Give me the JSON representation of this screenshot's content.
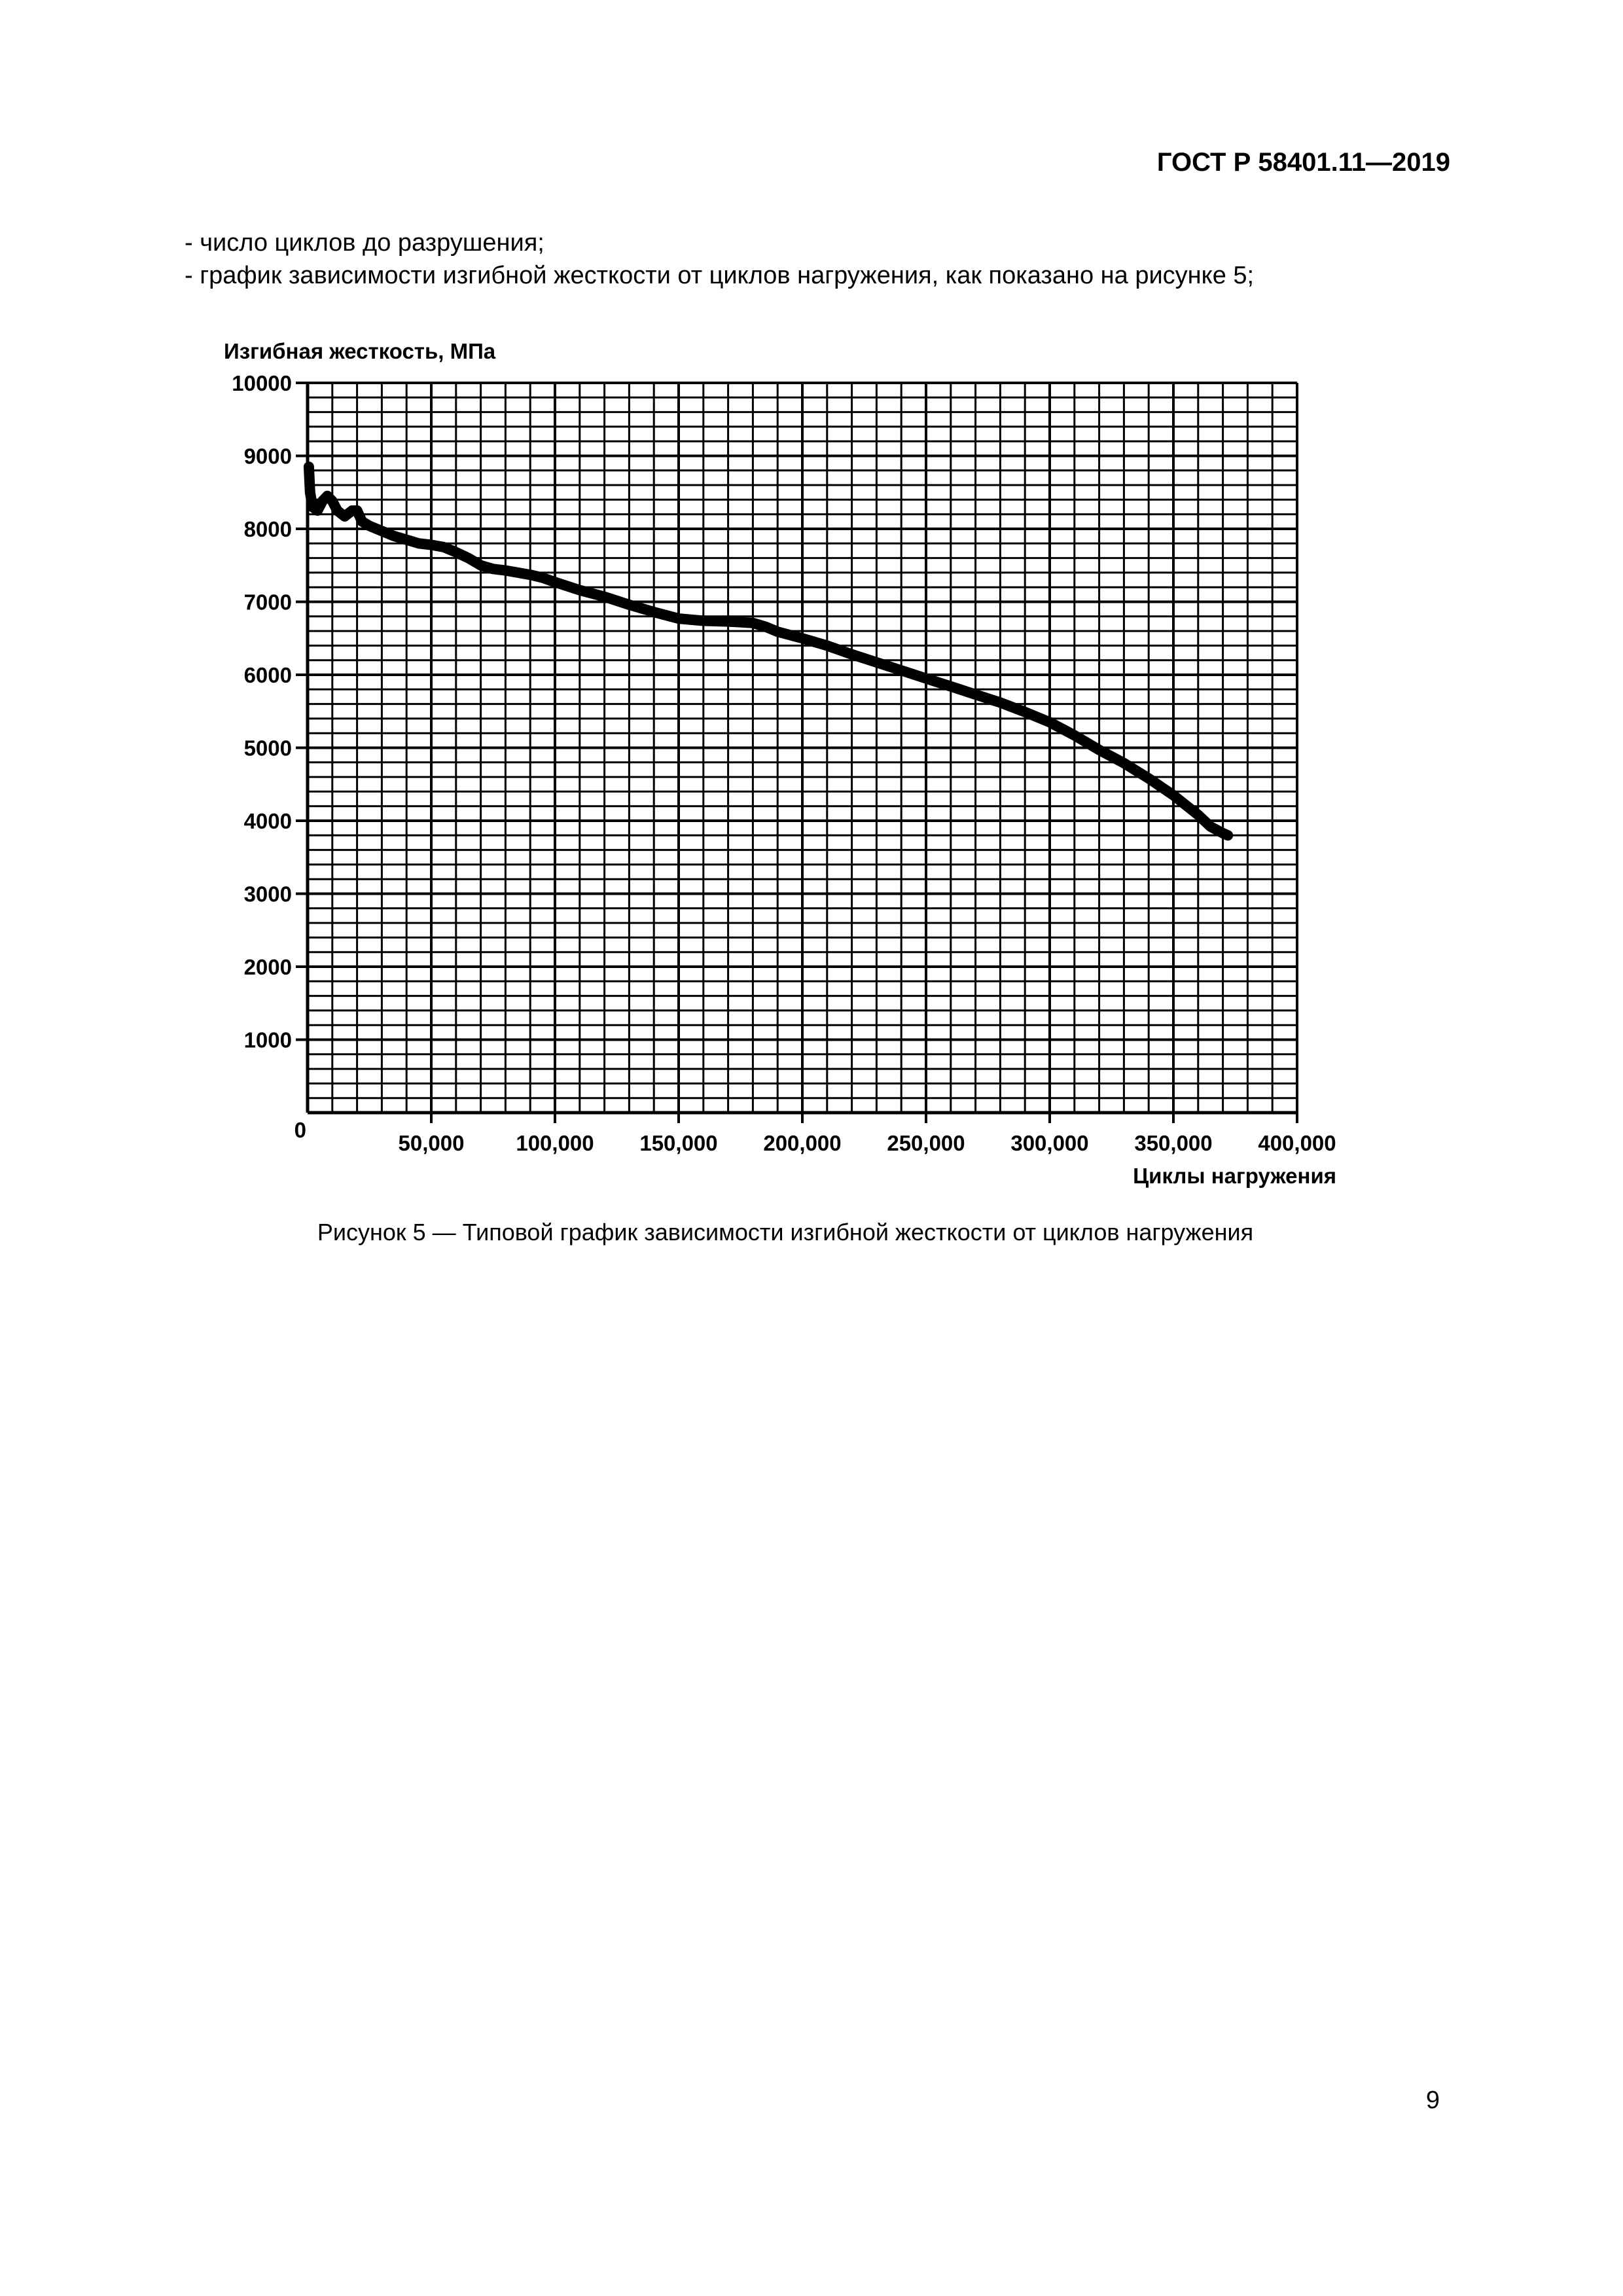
{
  "document": {
    "header": "ГОСТ Р 58401.11—2019",
    "text_lines": [
      "- число циклов до разрушения;",
      "- график зависимости изгибной жесткости от циклов нагружения, как показано на рисунке 5;"
    ],
    "caption": "Рисунок 5 — Типовой график зависимости изгибной жесткости от циклов нагружения",
    "page_number": "9"
  },
  "chart_data": {
    "type": "line",
    "title": "",
    "xlabel": "Циклы нагружения",
    "ylabel": "Изгибная жесткость, МПа",
    "xlim": [
      0,
      400000
    ],
    "ylim": [
      0,
      10000
    ],
    "grid": true,
    "x_ticks": [
      "0",
      "50,000",
      "100,000",
      "150,000",
      "200,000",
      "250,000",
      "300,000",
      "350,000",
      "400,000"
    ],
    "y_ticks": [
      "0",
      "1000",
      "2000",
      "3000",
      "4000",
      "5000",
      "6000",
      "7000",
      "8000",
      "9000",
      "10000"
    ],
    "line_color": "#000000",
    "series": [
      {
        "x": [
          500,
          1000,
          2000,
          4000,
          6000,
          8000,
          10000,
          12000,
          15000,
          18000,
          20000,
          22000,
          25000,
          30000,
          35000,
          40000,
          45000,
          50000,
          55000,
          60000,
          65000,
          70000,
          75000,
          80000,
          85000,
          90000,
          95000,
          100000,
          110000,
          120000,
          130000,
          140000,
          150000,
          160000,
          170000,
          175000,
          180000,
          185000,
          190000,
          200000,
          210000,
          220000,
          230000,
          240000,
          250000,
          260000,
          270000,
          280000,
          290000,
          300000,
          310000,
          320000,
          330000,
          340000,
          350000,
          360000,
          365000,
          370000,
          372000
        ],
        "y": [
          8850,
          8500,
          8300,
          8250,
          8380,
          8450,
          8380,
          8250,
          8170,
          8250,
          8250,
          8100,
          8040,
          7970,
          7900,
          7850,
          7800,
          7780,
          7750,
          7680,
          7600,
          7500,
          7450,
          7430,
          7400,
          7370,
          7330,
          7270,
          7160,
          7070,
          6960,
          6860,
          6770,
          6740,
          6730,
          6720,
          6710,
          6660,
          6590,
          6500,
          6400,
          6280,
          6170,
          6060,
          5950,
          5840,
          5730,
          5620,
          5490,
          5350,
          5170,
          4970,
          4790,
          4580,
          4350,
          4080,
          3920,
          3830,
          3800
        ]
      }
    ]
  }
}
